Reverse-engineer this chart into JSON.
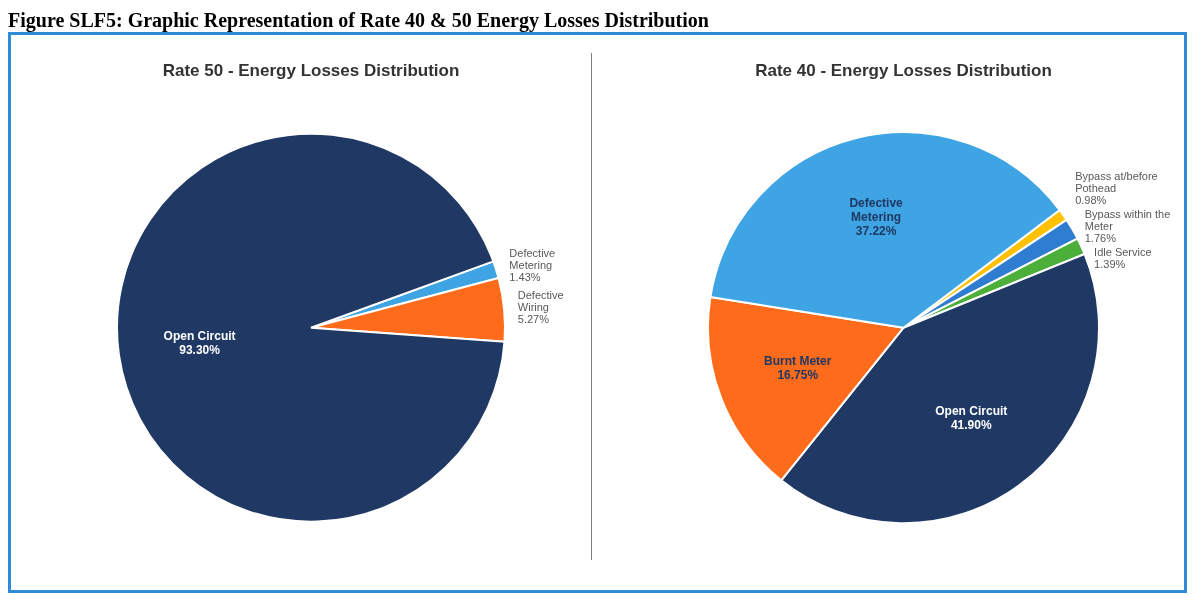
{
  "chart_data": [
    {
      "type": "other",
      "title": "Figure SLF5: Graphic Representation of Rate 40 & 50 Energy Losses Distribution"
    },
    {
      "type": "pie",
      "title": "Rate 50 - Energy Losses Distribution",
      "categories": [
        "Defective Metering",
        "Defective Wiring",
        "Open Circuit"
      ],
      "values": [
        1.43,
        5.27,
        93.3
      ],
      "colors": [
        "#3fa4e4",
        "#fe6b1a",
        "#1f3864"
      ],
      "value_labels": [
        "1.43%",
        "5.27%",
        "93.30%"
      ]
    },
    {
      "type": "pie",
      "title": "Rate 40 - Energy Losses Distribution",
      "categories": [
        "Bypass at/before Pothead",
        "Bypass within the Meter",
        "Idle Service",
        "Open Circuit",
        "Burnt Meter",
        "Defective Metering"
      ],
      "values": [
        0.98,
        1.76,
        1.39,
        41.9,
        16.75,
        37.22
      ],
      "colors": [
        "#ffc000",
        "#2f7dd1",
        "#4caf3a",
        "#1f3864",
        "#fe6b1a",
        "#3fa4e4"
      ],
      "value_labels": [
        "0.98%",
        "1.76%",
        "1.39%",
        "41.90%",
        "16.75%",
        "37.22%"
      ]
    }
  ]
}
